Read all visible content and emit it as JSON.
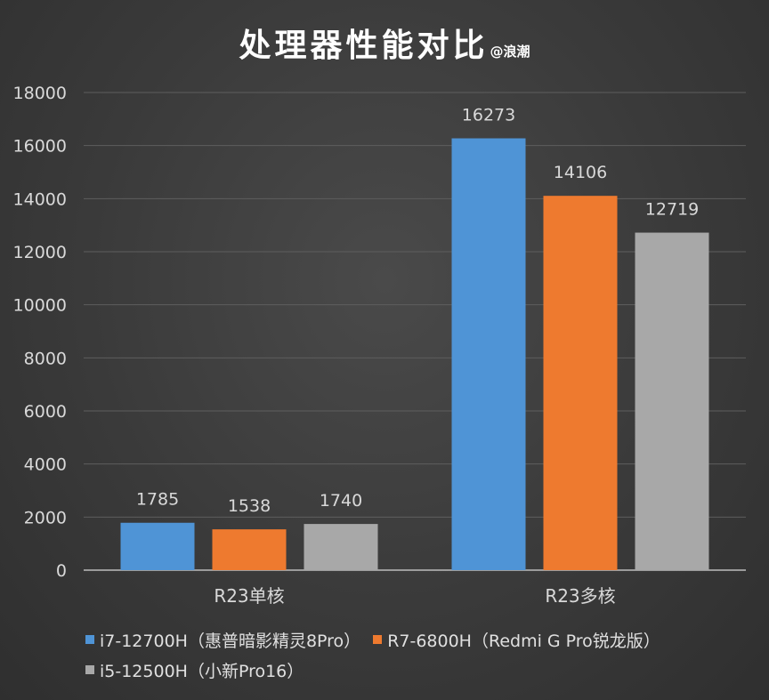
{
  "title": "处理器性能对比",
  "watermark": "@浪潮",
  "chart_data": {
    "type": "bar",
    "categories": [
      "R23单核",
      "R23多核"
    ],
    "series": [
      {
        "name": "i7-12700H（惠普暗影精灵8Pro）",
        "values": [
          1785,
          16273
        ],
        "color": "#4f94d6"
      },
      {
        "name": "R7-6800H（Redmi G Pro锐龙版）",
        "values": [
          1538,
          14106
        ],
        "color": "#ee7a2f"
      },
      {
        "name": "i5-12500H（小新Pro16）",
        "values": [
          1740,
          12719
        ],
        "color": "#a8a8a8"
      }
    ],
    "ylim": [
      0,
      18000
    ],
    "yticks": [
      0,
      2000,
      4000,
      6000,
      8000,
      10000,
      12000,
      14000,
      16000,
      18000
    ],
    "grid": true,
    "legend": "bottom",
    "xlabel": "",
    "ylabel": ""
  }
}
